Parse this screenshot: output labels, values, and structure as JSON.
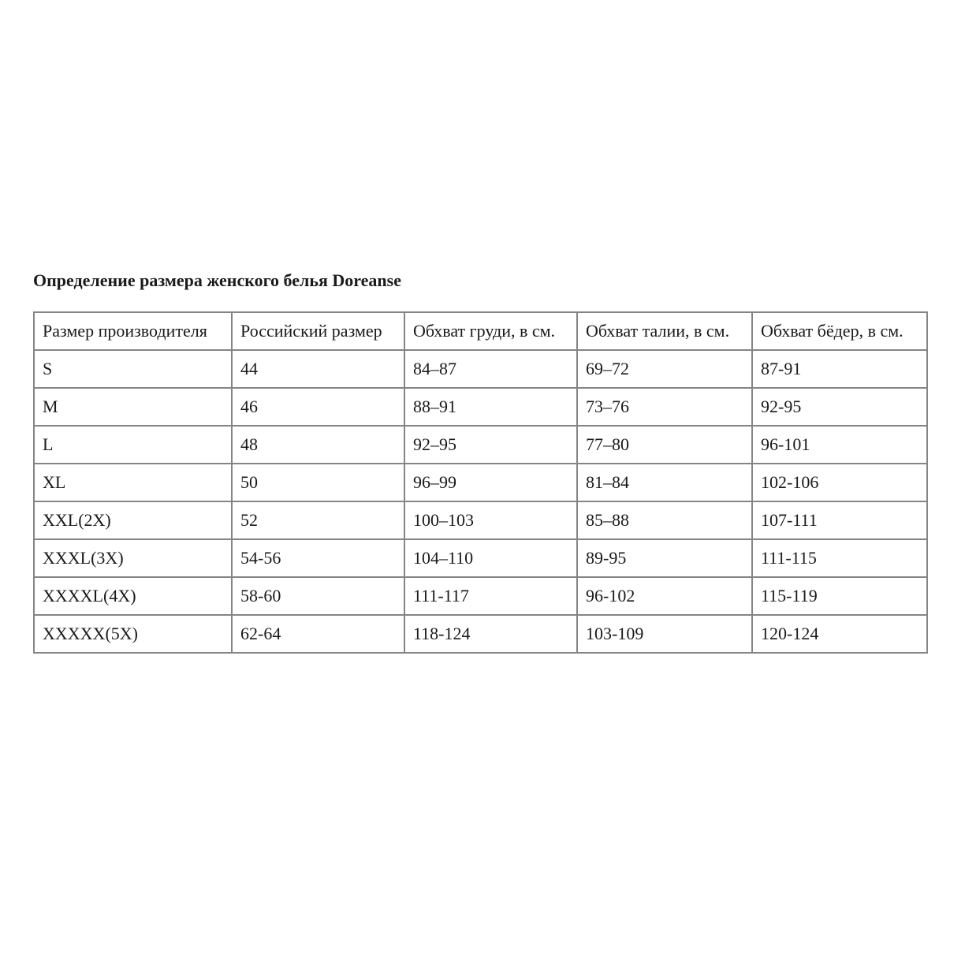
{
  "title": "Определение размера женского белья Doreanse",
  "table": {
    "headers": [
      "Размер производителя",
      "Российский размер",
      "Обхват груди, в см.",
      "Обхват талии, в см.",
      "Обхват бёдер, в см."
    ],
    "rows": [
      [
        "S",
        "44",
        "84–87",
        "69–72",
        "87-91"
      ],
      [
        "M",
        "46",
        "88–91",
        "73–76",
        "92-95"
      ],
      [
        "L",
        "48",
        "92–95",
        "77–80",
        "96-101"
      ],
      [
        "XL",
        "50",
        "96–99",
        "81–84",
        "102-106"
      ],
      [
        "XXL(2X)",
        "52",
        "100–103",
        "85–88",
        "107-111"
      ],
      [
        "XXXL(3X)",
        "54-56",
        "104–110",
        "89-95",
        "111-115"
      ],
      [
        "XXXXL(4X)",
        "58-60",
        "111-117",
        "96-102",
        "115-119"
      ],
      [
        "XXXXX(5X)",
        "62-64",
        "118-124",
        "103-109",
        "120-124"
      ]
    ]
  }
}
